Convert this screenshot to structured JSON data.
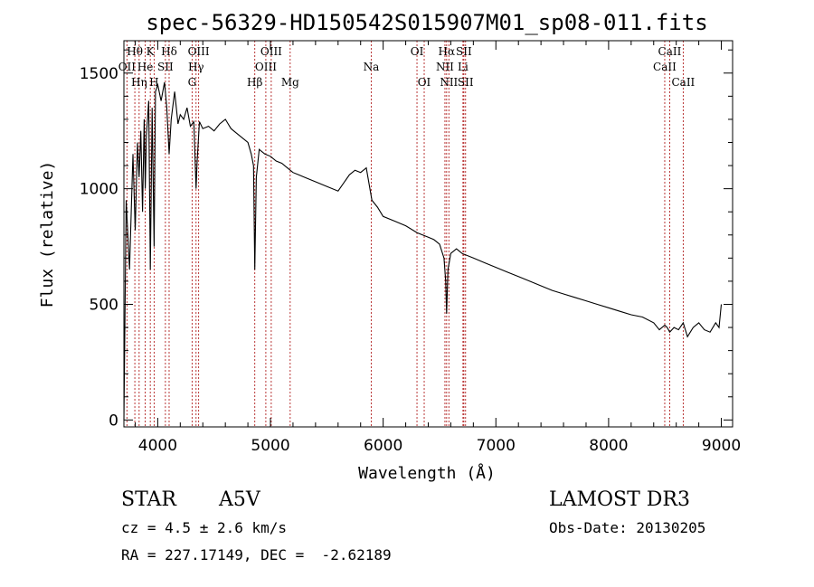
{
  "chart_data": {
    "type": "line",
    "title": "spec-56329-HD150542S015907M01_sp08-011.fits",
    "xlabel": "Wavelength (Å)",
    "ylabel": "Flux (relative)",
    "xlim": [
      3700,
      9100
    ],
    "ylim": [
      -30,
      1640
    ],
    "x_ticks": [
      4000,
      5000,
      6000,
      7000,
      8000,
      9000
    ],
    "x_tick_labels": [
      "4000",
      "5000",
      "6000",
      "7000",
      "8000",
      "9000"
    ],
    "y_ticks": [
      0,
      500,
      1000,
      1500
    ],
    "y_tick_labels": [
      "0",
      "500",
      "1000",
      "1500"
    ],
    "line_color": "#000000",
    "marker_color": "#b22222",
    "series": [
      {
        "name": "flux",
        "x": [
          3700,
          3720,
          3750,
          3780,
          3800,
          3820,
          3835,
          3850,
          3865,
          3880,
          3889,
          3900,
          3920,
          3934,
          3950,
          3968,
          3980,
          4000,
          4030,
          4060,
          4080,
          4101,
          4120,
          4150,
          4180,
          4200,
          4230,
          4260,
          4290,
          4320,
          4340,
          4350,
          4370,
          4400,
          4450,
          4500,
          4550,
          4600,
          4650,
          4700,
          4750,
          4800,
          4830,
          4850,
          4861,
          4875,
          4900,
          4950,
          5000,
          5050,
          5100,
          5150,
          5200,
          5250,
          5300,
          5400,
          5500,
          5600,
          5700,
          5750,
          5800,
          5850,
          5900,
          5950,
          6000,
          6100,
          6200,
          6300,
          6400,
          6450,
          6500,
          6540,
          6555,
          6563,
          6575,
          6600,
          6650,
          6700,
          6800,
          6900,
          7000,
          7100,
          7200,
          7300,
          7400,
          7500,
          7600,
          7700,
          7800,
          7900,
          8000,
          8100,
          8200,
          8300,
          8400,
          8450,
          8498,
          8520,
          8542,
          8580,
          8620,
          8662,
          8700,
          8750,
          8800,
          8850,
          8900,
          8950,
          8980,
          9000
        ],
        "y": [
          0,
          950,
          650,
          1150,
          820,
          1200,
          1050,
          1250,
          900,
          1300,
          1000,
          1230,
          1380,
          650,
          1350,
          750,
          1420,
          1450,
          1380,
          1460,
          1350,
          1150,
          1300,
          1420,
          1280,
          1320,
          1300,
          1350,
          1270,
          1290,
          1000,
          1120,
          1290,
          1260,
          1270,
          1250,
          1280,
          1300,
          1260,
          1240,
          1220,
          1200,
          1150,
          1100,
          650,
          1050,
          1170,
          1150,
          1140,
          1120,
          1110,
          1090,
          1070,
          1060,
          1050,
          1030,
          1010,
          990,
          1060,
          1080,
          1070,
          1090,
          950,
          920,
          880,
          860,
          840,
          810,
          790,
          780,
          760,
          700,
          600,
          460,
          650,
          720,
          740,
          720,
          700,
          680,
          660,
          640,
          620,
          600,
          580,
          560,
          545,
          530,
          515,
          500,
          485,
          470,
          455,
          445,
          420,
          390,
          410,
          400,
          380,
          400,
          390,
          420,
          360,
          400,
          420,
          390,
          380,
          420,
          400,
          500
        ]
      }
    ],
    "lines": [
      {
        "name": "Hθ",
        "wave": 3797,
        "row": 0
      },
      {
        "name": "OII",
        "wave": 3727,
        "row": 1
      },
      {
        "name": "Hη",
        "wave": 3835,
        "row": 2
      },
      {
        "name": "He",
        "wave": 3889,
        "row": 1
      },
      {
        "name": "K",
        "wave": 3934,
        "row": 0
      },
      {
        "name": "H",
        "wave": 3968,
        "row": 2
      },
      {
        "name": "SII",
        "wave": 4068,
        "row": 1
      },
      {
        "name": "Hδ",
        "wave": 4101,
        "row": 0
      },
      {
        "name": "G",
        "wave": 4305,
        "row": 2
      },
      {
        "name": "OIII",
        "wave": 4363,
        "row": 0
      },
      {
        "name": "Hγ",
        "wave": 4340,
        "row": 1
      },
      {
        "name": "Hβ",
        "wave": 4861,
        "row": 2
      },
      {
        "name": "OIII",
        "wave": 4959,
        "row": 1
      },
      {
        "name": "OIII",
        "wave": 5007,
        "row": 0
      },
      {
        "name": "Mg",
        "wave": 5175,
        "row": 2
      },
      {
        "name": "Na",
        "wave": 5894,
        "row": 1
      },
      {
        "name": "OI",
        "wave": 6300,
        "row": 0
      },
      {
        "name": "OI",
        "wave": 6364,
        "row": 2
      },
      {
        "name": "NII",
        "wave": 6548,
        "row": 1
      },
      {
        "name": "Hα",
        "wave": 6563,
        "row": 0
      },
      {
        "name": "NII",
        "wave": 6583,
        "row": 2
      },
      {
        "name": "Li",
        "wave": 6708,
        "row": 1
      },
      {
        "name": "SII",
        "wave": 6716,
        "row": 0
      },
      {
        "name": "SII",
        "wave": 6731,
        "row": 2
      },
      {
        "name": "CaII",
        "wave": 8498,
        "row": 1
      },
      {
        "name": "CaII",
        "wave": 8542,
        "row": 0
      },
      {
        "name": "CaII",
        "wave": 8662,
        "row": 2
      }
    ]
  },
  "info": {
    "object_class": "STAR",
    "subclass": "A5V",
    "survey": "LAMOST DR3",
    "cz": "cz = 4.5 ± 2.6 km/s",
    "obs_date": "Obs-Date: 20130205",
    "coords": "RA = 227.17149, DEC =  -2.62189"
  }
}
